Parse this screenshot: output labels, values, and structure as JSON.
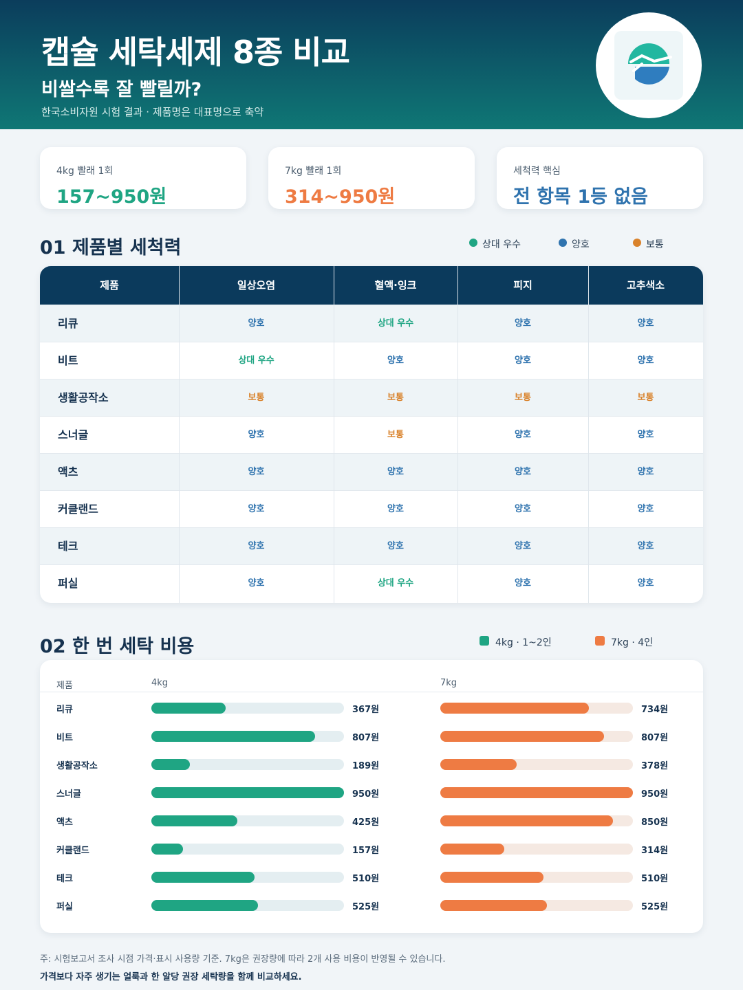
{
  "header": {
    "title": "캡슐 세탁세제 8종 비교",
    "subtitle": "비쌀수록 잘 빨릴까?",
    "source": "한국소비자원 시험 결과 · 제품명은 대표명으로 축약"
  },
  "cards": [
    {
      "label": "4kg 빨래 1회",
      "value": "157~950원",
      "color": "#1fa583"
    },
    {
      "label": "7kg 빨래 1회",
      "value": "314~950원",
      "color": "#ee7b43"
    },
    {
      "label": "세척력 핵심",
      "value": "전 항목 1등 없음",
      "color": "#2f73ae"
    }
  ],
  "section1": {
    "title": "01  제품별 세척력",
    "legend": [
      {
        "label": "상대 우수",
        "color": "#1fa583"
      },
      {
        "label": "양호",
        "color": "#2f73ae"
      },
      {
        "label": "보통",
        "color": "#d9822b"
      }
    ]
  },
  "rating_colors": {
    "상대 우수": "#1fa583",
    "양호": "#2f73ae",
    "보통": "#d9822b"
  },
  "table": {
    "columns": [
      "제품",
      "일상오염",
      "혈액·잉크",
      "피지",
      "고추색소"
    ],
    "rows": [
      {
        "name": "리큐",
        "ratings": [
          "양호",
          "상대 우수",
          "양호",
          "양호"
        ]
      },
      {
        "name": "비트",
        "ratings": [
          "상대 우수",
          "양호",
          "양호",
          "양호"
        ]
      },
      {
        "name": "생활공작소",
        "ratings": [
          "보통",
          "보통",
          "보통",
          "보통"
        ]
      },
      {
        "name": "스너글",
        "ratings": [
          "양호",
          "보통",
          "양호",
          "양호"
        ]
      },
      {
        "name": "액츠",
        "ratings": [
          "양호",
          "양호",
          "양호",
          "양호"
        ]
      },
      {
        "name": "커클랜드",
        "ratings": [
          "양호",
          "양호",
          "양호",
          "양호"
        ]
      },
      {
        "name": "테크",
        "ratings": [
          "양호",
          "양호",
          "양호",
          "양호"
        ]
      },
      {
        "name": "퍼실",
        "ratings": [
          "양호",
          "상대 우수",
          "양호",
          "양호"
        ]
      }
    ]
  },
  "section2": {
    "title": "02  한 번 세탁 비용",
    "legend": [
      {
        "label": "4kg · 1~2인",
        "color": "#1fa583"
      },
      {
        "label": "7kg · 4인",
        "color": "#ee7b43"
      }
    ]
  },
  "chart_data": {
    "type": "bar",
    "orientation": "horizontal",
    "header_product": "제품",
    "unit": "원",
    "xlim": [
      0,
      950
    ],
    "categories": [
      "리큐",
      "비트",
      "생활공작소",
      "스너글",
      "액츠",
      "커클랜드",
      "테크",
      "퍼실"
    ],
    "series": [
      {
        "name": "4kg",
        "color": "#1fa583",
        "track": "#e4eef1",
        "values": [
          367,
          807,
          189,
          950,
          425,
          157,
          510,
          525
        ]
      },
      {
        "name": "7kg",
        "color": "#ee7b43",
        "track": "#f5e9e2",
        "values": [
          734,
          807,
          378,
          950,
          850,
          314,
          510,
          525
        ]
      }
    ]
  },
  "footer": {
    "note": "주: 시험보고서 조사 시점 가격·표시 사용량 기준. 7kg은 권장량에 따라 2개 사용 비용이 반영될 수 있습니다.",
    "tip": "가격보다 자주 생기는 얼룩과 한 알당 권장 세탁량을 함께 비교하세요."
  }
}
